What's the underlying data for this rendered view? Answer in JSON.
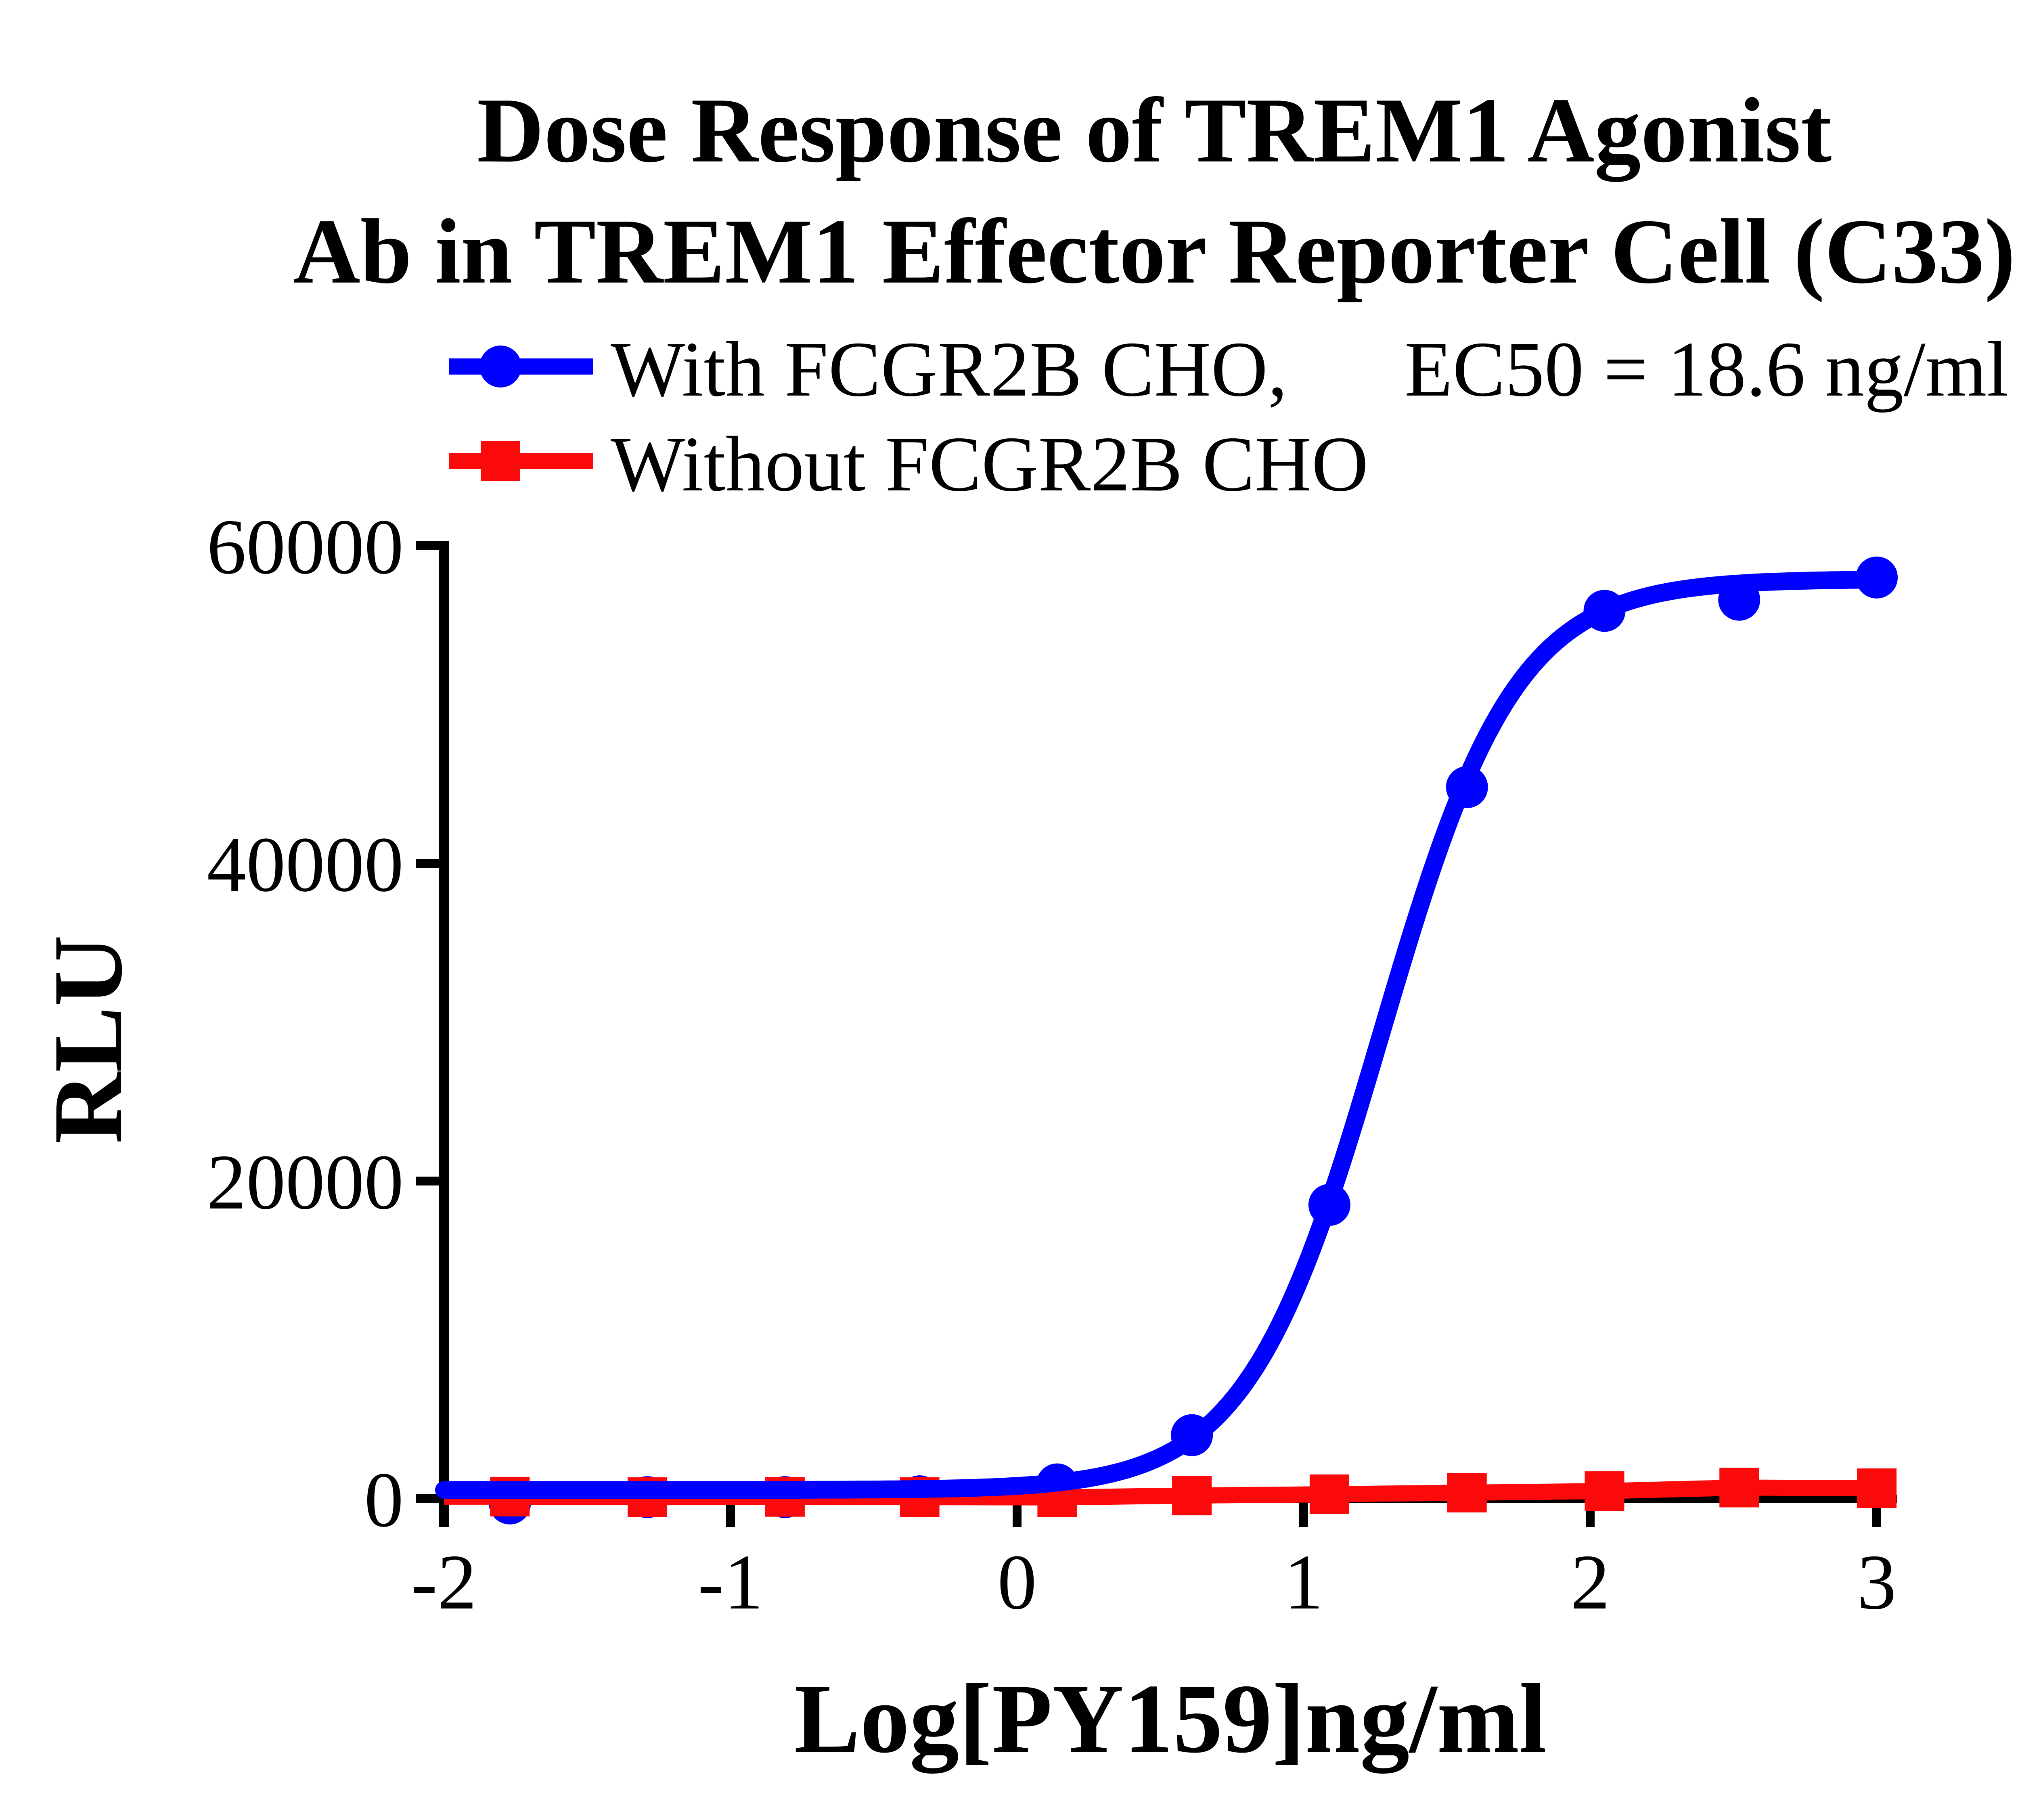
{
  "title": {
    "line1": "Dose Response of TREM1 Agonist",
    "line2": "Ab in TREM1 Effector Reporter Cell (C33)"
  },
  "legend": {
    "series1_label": "With FCGR2B CHO,",
    "series1_ec50": "EC50 = 18.6 ng/ml",
    "series2_label": "Without FCGR2B CHO"
  },
  "chart_data": {
    "type": "scatter",
    "title": "Dose Response of TREM1 Agonist Ab in TREM1 Effector Reporter Cell (C33)",
    "xlabel": "Log[PY159]ng/ml",
    "ylabel": "RLU",
    "xlim": [
      -2,
      3.05
    ],
    "ylim": [
      0,
      60000
    ],
    "grid": false,
    "legend_position": "top",
    "x_ticks": [
      {
        "value": -2,
        "label": "-2"
      },
      {
        "value": -1,
        "label": "-1"
      },
      {
        "value": 0,
        "label": "0"
      },
      {
        "value": 1,
        "label": "1"
      },
      {
        "value": 2,
        "label": "2"
      },
      {
        "value": 3,
        "label": "3"
      }
    ],
    "y_ticks": [
      {
        "value": 0,
        "label": "0"
      },
      {
        "value": 20000,
        "label": "20000"
      },
      {
        "value": 40000,
        "label": "40000"
      },
      {
        "value": 60000,
        "label": "60000"
      }
    ],
    "series": [
      {
        "name": "With FCGR2B CHO",
        "annotation": "EC50 = 18.6 ng/ml",
        "color": "#0000ff",
        "marker": "circle",
        "x": [
          -1.77,
          -1.29,
          -0.81,
          -0.34,
          0.14,
          0.61,
          1.09,
          1.57,
          2.05,
          2.52,
          3.0
        ],
        "y": [
          -300,
          100,
          100,
          150,
          900,
          4000,
          18500,
          44800,
          55900,
          56600,
          58000
        ],
        "fit": {
          "model": "4PL",
          "bottom": 550,
          "top": 57900,
          "log_ec50": 1.27,
          "hill": 1.85
        }
      },
      {
        "name": "Without FCGR2B CHO",
        "annotation": "",
        "color": "#fa0a0a",
        "marker": "square",
        "x": [
          -1.77,
          -1.29,
          -0.81,
          -0.34,
          0.14,
          0.61,
          1.09,
          1.57,
          2.05,
          2.52,
          3.0
        ],
        "y": [
          130,
          100,
          110,
          100,
          80,
          200,
          280,
          380,
          480,
          700,
          660
        ],
        "fit": null
      }
    ]
  }
}
